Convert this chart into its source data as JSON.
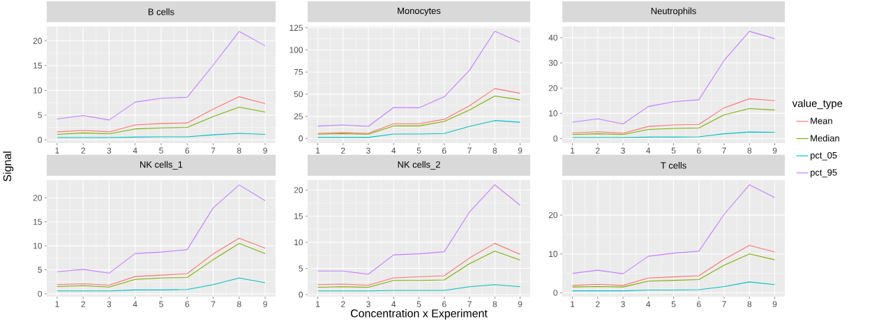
{
  "chart_data": [
    {
      "type": "line",
      "title": "B cells",
      "ylabel": "Signal",
      "x": [
        1,
        2,
        3,
        4,
        5,
        6,
        7,
        8,
        9
      ],
      "xlim": [
        0.6,
        9.4
      ],
      "xticks": [
        1,
        2,
        3,
        4,
        5,
        6,
        7,
        8,
        9
      ],
      "ylim": [
        -0.67,
        22.9
      ],
      "yticks": [
        0,
        5,
        10,
        15,
        20
      ],
      "grid": true,
      "series": [
        {
          "color": "#f8766d",
          "values": [
            1.6,
            1.9,
            1.6,
            3.0,
            3.3,
            3.4,
            6.2,
            8.7,
            7.3
          ]
        },
        {
          "color": "#7cae00",
          "values": [
            1.1,
            1.4,
            1.2,
            2.2,
            2.4,
            2.5,
            4.7,
            6.6,
            5.6
          ]
        },
        {
          "color": "#00bfc4",
          "values": [
            0.45,
            0.45,
            0.45,
            0.55,
            0.6,
            0.6,
            1.0,
            1.3,
            1.1
          ]
        },
        {
          "color": "#c77cff",
          "values": [
            4.2,
            4.9,
            4.0,
            7.6,
            8.4,
            8.6,
            15.1,
            21.9,
            19.0
          ]
        }
      ]
    },
    {
      "type": "line",
      "title": "Monocytes",
      "x": [
        1,
        2,
        3,
        4,
        5,
        6,
        7,
        8,
        9
      ],
      "xlim": [
        0.6,
        9.4
      ],
      "xticks": [
        1,
        2,
        3,
        4,
        5,
        6,
        7,
        8,
        9
      ],
      "ylim": [
        -5.3,
        126.4
      ],
      "yticks": [
        0,
        25,
        50,
        75,
        100,
        125
      ],
      "grid": true,
      "series": [
        {
          "color": "#f8766d",
          "values": [
            5.8,
            6.4,
            5.8,
            16.6,
            16.6,
            21.6,
            36.9,
            56.3,
            51.0
          ]
        },
        {
          "color": "#7cae00",
          "values": [
            4.7,
            5.3,
            4.7,
            14.1,
            14.1,
            19.1,
            32.2,
            47.9,
            43.5
          ]
        },
        {
          "color": "#00bfc4",
          "values": [
            1.1,
            1.1,
            1.1,
            5.0,
            5.0,
            5.5,
            13.6,
            20.2,
            18.3
          ]
        },
        {
          "color": "#c77cff",
          "values": [
            13.9,
            15.2,
            13.6,
            34.9,
            34.6,
            47.1,
            77.0,
            121.1,
            108.6
          ]
        }
      ]
    },
    {
      "type": "line",
      "title": "Neutrophils",
      "legend_title": "value_type",
      "legend": "right",
      "x": [
        1,
        2,
        3,
        4,
        5,
        6,
        7,
        8,
        9
      ],
      "xlim": [
        0.6,
        9.4
      ],
      "xticks": [
        1,
        2,
        3,
        4,
        5,
        6,
        7,
        8,
        9
      ],
      "ylim": [
        -1.8,
        44.4
      ],
      "yticks": [
        0,
        10,
        20,
        30,
        40
      ],
      "grid": true,
      "series": [
        {
          "name": "Mean",
          "color": "#f8766d",
          "values": [
            2.2,
            2.7,
            2.1,
            4.8,
            5.4,
            5.6,
            12.2,
            15.8,
            15.0
          ]
        },
        {
          "name": "Median",
          "color": "#7cae00",
          "values": [
            1.6,
            1.9,
            1.6,
            3.6,
            4.0,
            4.2,
            9.4,
            11.9,
            11.3
          ]
        },
        {
          "name": "pct_05",
          "color": "#00bfc4",
          "values": [
            0.4,
            0.4,
            0.4,
            0.6,
            0.6,
            0.7,
            1.9,
            2.6,
            2.5
          ]
        },
        {
          "name": "pct_95",
          "color": "#c77cff",
          "values": [
            6.5,
            7.8,
            5.8,
            12.7,
            14.6,
            15.4,
            31.0,
            42.5,
            39.6
          ]
        }
      ]
    },
    {
      "type": "line",
      "title": "NK cells_1",
      "x": [
        1,
        2,
        3,
        4,
        5,
        6,
        7,
        8,
        9
      ],
      "xlim": [
        0.6,
        9.4
      ],
      "xticks": [
        1,
        2,
        3,
        4,
        5,
        6,
        7,
        8,
        9
      ],
      "ylim": [
        -0.6,
        23.7
      ],
      "yticks": [
        0,
        5,
        10,
        15,
        20
      ],
      "grid": true,
      "series": [
        {
          "color": "#f8766d",
          "values": [
            1.9,
            2.1,
            1.8,
            3.6,
            3.9,
            4.2,
            8.3,
            11.6,
            9.5
          ]
        },
        {
          "color": "#7cae00",
          "values": [
            1.5,
            1.7,
            1.4,
            3.0,
            3.3,
            3.4,
            7.1,
            10.5,
            8.4
          ]
        },
        {
          "color": "#00bfc4",
          "values": [
            0.6,
            0.6,
            0.6,
            0.8,
            0.8,
            0.9,
            1.9,
            3.3,
            2.3
          ]
        },
        {
          "color": "#c77cff",
          "values": [
            4.6,
            5.1,
            4.3,
            8.4,
            8.7,
            9.2,
            17.9,
            22.7,
            19.4
          ]
        }
      ]
    },
    {
      "type": "line",
      "title": "NK cells_2",
      "xlabel": "Concentration x Experiment",
      "x": [
        1,
        2,
        3,
        4,
        5,
        6,
        7,
        8,
        9
      ],
      "xlim": [
        0.6,
        9.4
      ],
      "xticks": [
        1,
        2,
        3,
        4,
        5,
        6,
        7,
        8,
        9
      ],
      "ylim": [
        -0.4,
        21.9
      ],
      "yticks": [
        0,
        5,
        10,
        15,
        20
      ],
      "grid": true,
      "series": [
        {
          "color": "#f8766d",
          "values": [
            1.9,
            2.0,
            1.8,
            3.2,
            3.4,
            3.6,
            7.0,
            9.8,
            7.7
          ]
        },
        {
          "color": "#7cae00",
          "values": [
            1.4,
            1.5,
            1.4,
            2.7,
            2.7,
            2.8,
            5.9,
            8.3,
            6.6
          ]
        },
        {
          "color": "#00bfc4",
          "values": [
            0.7,
            0.7,
            0.7,
            0.8,
            0.8,
            0.8,
            1.5,
            1.9,
            1.5
          ]
        },
        {
          "color": "#c77cff",
          "values": [
            4.5,
            4.5,
            3.9,
            7.6,
            7.8,
            8.2,
            15.8,
            21.0,
            17.1
          ]
        }
      ]
    },
    {
      "type": "line",
      "title": "T cells",
      "x": [
        1,
        2,
        3,
        4,
        5,
        6,
        7,
        8,
        9
      ],
      "xlim": [
        0.6,
        9.4
      ],
      "xticks": [
        1,
        2,
        3,
        4,
        5,
        6,
        7,
        8,
        9
      ],
      "ylim": [
        -1.0,
        29.0
      ],
      "yticks": [
        0,
        10,
        20
      ],
      "grid": true,
      "series": [
        {
          "color": "#f8766d",
          "values": [
            1.9,
            2.2,
            1.9,
            3.8,
            4.1,
            4.4,
            8.6,
            12.2,
            10.5
          ]
        },
        {
          "color": "#7cae00",
          "values": [
            1.5,
            1.6,
            1.5,
            3.0,
            3.2,
            3.4,
            7.1,
            10.0,
            8.5
          ]
        },
        {
          "color": "#00bfc4",
          "values": [
            0.5,
            0.5,
            0.5,
            0.7,
            0.7,
            0.8,
            1.6,
            2.8,
            2.1
          ]
        },
        {
          "color": "#c77cff",
          "values": [
            5.0,
            5.8,
            4.9,
            9.4,
            10.2,
            10.7,
            20.2,
            27.8,
            24.5
          ]
        }
      ]
    }
  ]
}
